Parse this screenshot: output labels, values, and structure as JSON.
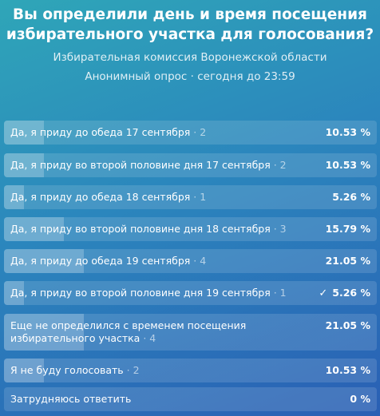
{
  "poll": {
    "question_line1": "Вы определили день и время посещения",
    "question_line2": "избирательного участка для голосования?",
    "author": "Избирательная комиссия Воронежской области",
    "info": "Анонимный опрос · сегодня до 23:59"
  },
  "options": [
    {
      "label": "Да, я приду до обеда 17 сентября",
      "count": " · 2",
      "percent_text": "10.53 %",
      "share": 0.1053,
      "selected": false
    },
    {
      "label": "Да, я приду во второй половине дня 17 сентября",
      "count": " · 2",
      "percent_text": "10.53 %",
      "share": 0.1053,
      "selected": false
    },
    {
      "label": "Да, я приду до обеда 18 сентября",
      "count": " · 1",
      "percent_text": "5.26 %",
      "share": 0.0526,
      "selected": false
    },
    {
      "label": "Да, я приду во второй половине дня 18 сентября",
      "count": " · 3",
      "percent_text": "15.79 %",
      "share": 0.1579,
      "selected": false
    },
    {
      "label": "Да, я приду до обеда 19 сентября",
      "count": " · 4",
      "percent_text": "21.05 %",
      "share": 0.2105,
      "selected": false
    },
    {
      "label": "Да, я приду во второй половине дня 19 сентября",
      "count": " · 1",
      "percent_text": "5.26 %",
      "share": 0.0526,
      "selected": true
    },
    {
      "label": "Еще не определился с временем посещения избирательного участка",
      "count": " · 4",
      "percent_text": "21.05 %",
      "share": 0.2105,
      "selected": false
    },
    {
      "label": "Я не буду голосовать",
      "count": " · 2",
      "percent_text": "10.53 %",
      "share": 0.1053,
      "selected": false
    },
    {
      "label": "Затрудняюсь ответить",
      "count": "",
      "percent_text": "0 %",
      "share": 0,
      "selected": false
    }
  ],
  "icons": {
    "selected": "checkmark-icon"
  }
}
